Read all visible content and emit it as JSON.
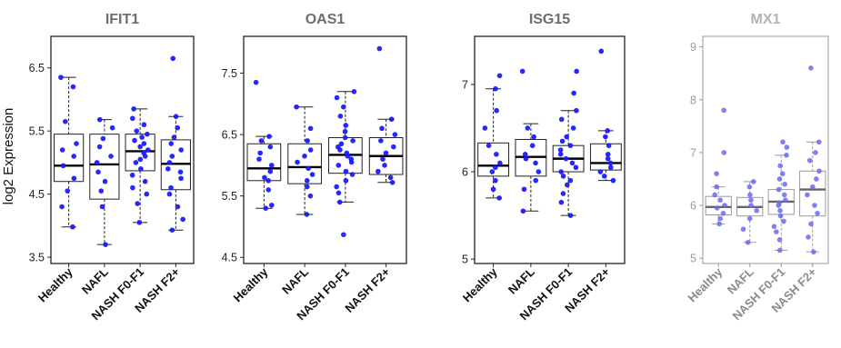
{
  "figure": {
    "ylabel": "log2 Expression"
  },
  "colors": {
    "points_dark": "#1a1aff",
    "points_light": "#6a6af0",
    "box_dark": "#222222",
    "box_light": "#9a9a9a",
    "title_dark": "#6d6d6d",
    "title_light": "#b3b3b3"
  },
  "chart_data": [
    {
      "type": "box",
      "title": "IFIT1",
      "categories": [
        "Healthy",
        "NAFL",
        "NASH F0-F1",
        "NASH F2+"
      ],
      "ylim": [
        3.4,
        7.0
      ],
      "yticks": [
        "3.5",
        "4.5",
        "5.5",
        "6.5"
      ],
      "boxes": [
        {
          "q1": 4.7,
          "median": 4.95,
          "q3": 5.45,
          "wlo": 3.98,
          "whi": 6.35
        },
        {
          "q1": 4.42,
          "median": 4.97,
          "q3": 5.45,
          "wlo": 3.7,
          "whi": 5.68
        },
        {
          "q1": 4.87,
          "median": 5.18,
          "q3": 5.45,
          "wlo": 4.05,
          "whi": 5.85
        },
        {
          "q1": 4.57,
          "median": 4.98,
          "q3": 5.36,
          "wlo": 3.93,
          "whi": 5.73
        }
      ],
      "points": [
        [
          3.98,
          4.3,
          4.55,
          4.75,
          4.95,
          5.1,
          5.2,
          5.3,
          5.65,
          6.2,
          6.35
        ],
        [
          3.7,
          4.3,
          4.55,
          4.7,
          4.85,
          5.0,
          5.1,
          5.25,
          5.38,
          5.55,
          5.68
        ],
        [
          4.05,
          4.35,
          4.5,
          4.6,
          4.7,
          4.8,
          4.9,
          5.0,
          5.05,
          5.1,
          5.15,
          5.2,
          5.25,
          5.3,
          5.35,
          5.4,
          5.45,
          5.5,
          5.6,
          5.7,
          5.85
        ],
        [
          3.93,
          4.1,
          4.3,
          4.5,
          4.6,
          4.75,
          4.85,
          4.9,
          5.0,
          5.1,
          5.2,
          5.3,
          5.4,
          5.55,
          5.73,
          6.65
        ]
      ],
      "style": "dark"
    },
    {
      "type": "box",
      "title": "OAS1",
      "categories": [
        "Healthy",
        "NAFL",
        "NASH F0-F1",
        "NASH F2+"
      ],
      "ylim": [
        4.4,
        8.1
      ],
      "yticks": [
        "4.5",
        "5.5",
        "6.5",
        "7.5"
      ],
      "boxes": [
        {
          "q1": 5.75,
          "median": 5.95,
          "q3": 6.35,
          "wlo": 5.3,
          "whi": 6.47
        },
        {
          "q1": 5.7,
          "median": 5.97,
          "q3": 6.35,
          "wlo": 5.2,
          "whi": 6.95
        },
        {
          "q1": 5.87,
          "median": 6.17,
          "q3": 6.45,
          "wlo": 5.4,
          "whi": 7.2
        },
        {
          "q1": 5.85,
          "median": 6.15,
          "q3": 6.45,
          "wlo": 5.72,
          "whi": 6.75
        }
      ],
      "points": [
        [
          5.3,
          5.35,
          5.6,
          5.75,
          5.8,
          5.9,
          6.0,
          6.1,
          6.2,
          6.3,
          6.4,
          6.47,
          7.35
        ],
        [
          5.2,
          5.5,
          5.65,
          5.75,
          5.85,
          5.95,
          6.05,
          6.15,
          6.25,
          6.4,
          6.6,
          6.95
        ],
        [
          4.87,
          5.4,
          5.55,
          5.65,
          5.75,
          5.85,
          5.9,
          6.0,
          6.05,
          6.1,
          6.15,
          6.2,
          6.25,
          6.3,
          6.35,
          6.4,
          6.45,
          6.55,
          6.65,
          6.8,
          6.95,
          7.1,
          7.2
        ],
        [
          5.72,
          5.8,
          5.9,
          6.0,
          6.1,
          6.2,
          6.3,
          6.4,
          6.5,
          6.6,
          6.75,
          7.9
        ]
      ],
      "style": "dark"
    },
    {
      "type": "box",
      "title": "ISG15",
      "categories": [
        "Healthy",
        "NAFL",
        "NASH F0-F1",
        "NASH F2+"
      ],
      "ylim": [
        4.95,
        7.55
      ],
      "yticks": [
        "5",
        "6",
        "7"
      ],
      "boxes": [
        {
          "q1": 5.95,
          "median": 6.07,
          "q3": 6.33,
          "wlo": 5.7,
          "whi": 6.95
        },
        {
          "q1": 5.95,
          "median": 6.17,
          "q3": 6.37,
          "wlo": 5.55,
          "whi": 6.55
        },
        {
          "q1": 6.0,
          "median": 6.15,
          "q3": 6.3,
          "wlo": 5.5,
          "whi": 6.7
        },
        {
          "q1": 6.02,
          "median": 6.1,
          "q3": 6.32,
          "wlo": 5.9,
          "whi": 6.47
        }
      ],
      "points": [
        [
          5.7,
          5.8,
          5.9,
          6.0,
          6.05,
          6.1,
          6.2,
          6.3,
          6.5,
          6.7,
          6.95,
          7.1
        ],
        [
          5.55,
          5.8,
          5.9,
          6.0,
          6.1,
          6.15,
          6.2,
          6.3,
          6.4,
          6.5,
          7.15
        ],
        [
          5.5,
          5.65,
          5.75,
          5.85,
          5.9,
          5.95,
          6.0,
          6.05,
          6.1,
          6.15,
          6.2,
          6.25,
          6.3,
          6.35,
          6.4,
          6.5,
          6.6,
          6.7,
          6.9,
          7.15
        ],
        [
          5.9,
          5.95,
          6.0,
          6.05,
          6.1,
          6.15,
          6.2,
          6.3,
          6.4,
          6.47,
          7.38
        ]
      ],
      "style": "dark"
    },
    {
      "type": "box",
      "title": "MX1",
      "categories": [
        "Healthy",
        "NAFL",
        "NASH F0-F1",
        "NASH F2+"
      ],
      "ylim": [
        4.9,
        9.2
      ],
      "yticks": [
        "5",
        "6",
        "7",
        "8",
        "9"
      ],
      "boxes": [
        {
          "q1": 5.82,
          "median": 5.97,
          "q3": 6.17,
          "wlo": 5.65,
          "whi": 6.35
        },
        {
          "q1": 5.8,
          "median": 5.97,
          "q3": 6.15,
          "wlo": 5.3,
          "whi": 6.45
        },
        {
          "q1": 5.83,
          "median": 6.07,
          "q3": 6.3,
          "wlo": 5.15,
          "whi": 6.95
        },
        {
          "q1": 5.8,
          "median": 6.3,
          "q3": 6.65,
          "wlo": 5.12,
          "whi": 7.2
        }
      ],
      "points": [
        [
          5.65,
          5.75,
          5.85,
          5.95,
          6.0,
          6.1,
          6.2,
          6.35,
          6.6,
          7.0,
          7.8
        ],
        [
          5.3,
          5.55,
          5.75,
          5.9,
          6.0,
          6.1,
          6.2,
          6.35,
          6.45
        ],
        [
          5.15,
          5.35,
          5.5,
          5.6,
          5.7,
          5.8,
          5.9,
          6.0,
          6.05,
          6.1,
          6.2,
          6.3,
          6.4,
          6.5,
          6.6,
          6.75,
          6.95,
          7.1,
          7.2
        ],
        [
          5.12,
          5.4,
          5.65,
          5.85,
          6.0,
          6.2,
          6.35,
          6.5,
          6.65,
          6.85,
          7.0,
          7.2,
          8.6
        ]
      ],
      "style": "light"
    }
  ]
}
